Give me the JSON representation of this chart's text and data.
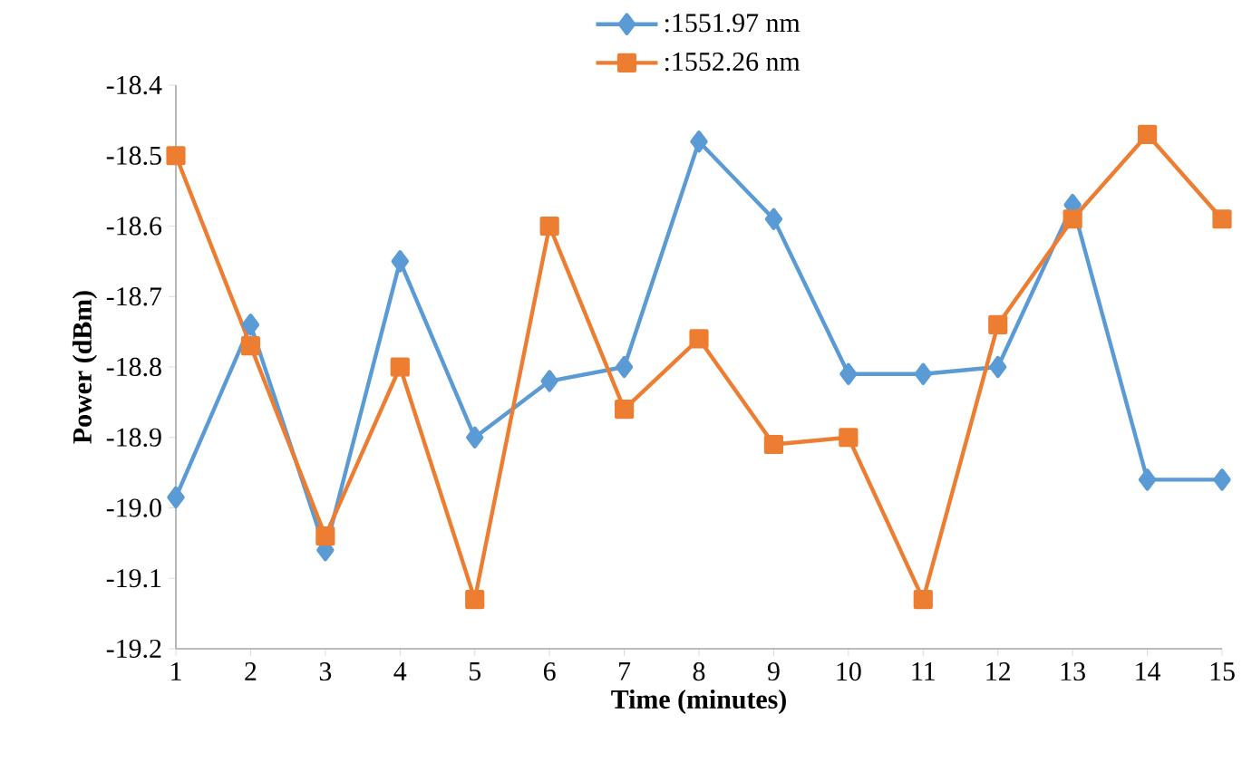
{
  "chart_data": {
    "type": "line",
    "xlabel": "Time (minutes)",
    "ylabel": "Power (dBm)",
    "x": [
      1,
      2,
      3,
      4,
      5,
      6,
      7,
      8,
      9,
      10,
      11,
      12,
      13,
      14,
      15
    ],
    "xlim": [
      1,
      15
    ],
    "xticks": [
      1,
      2,
      3,
      4,
      5,
      6,
      7,
      8,
      9,
      10,
      11,
      12,
      13,
      14,
      15
    ],
    "ylim": [
      -19.2,
      -18.4
    ],
    "yticks": [
      {
        "value": -19.2,
        "label": "-19.2"
      },
      {
        "value": -19.1,
        "label": "-19.1"
      },
      {
        "value": -19.0,
        "label": "-19.0"
      },
      {
        "value": -18.9,
        "label": "-18.9"
      },
      {
        "value": -18.8,
        "label": "-18.8"
      },
      {
        "value": -18.7,
        "label": "-18.7"
      },
      {
        "value": -18.6,
        "label": "-18.6"
      },
      {
        "value": -18.5,
        "label": "-18.5"
      },
      {
        "value": -18.4,
        "label": "-18.4"
      }
    ],
    "grid": false,
    "legend": "top",
    "line_style": "solid",
    "series": [
      {
        "name": ":1551.97 nm",
        "color": "#5b9bd5",
        "marker": "diamond",
        "values": [
          -18.985,
          -18.74,
          -19.06,
          -18.65,
          -18.9,
          -18.82,
          -18.8,
          -18.48,
          -18.59,
          -18.81,
          -18.81,
          -18.8,
          -18.57,
          -18.96,
          -18.96
        ]
      },
      {
        "name": ":1552.26 nm",
        "color": "#ed7d31",
        "marker": "square",
        "values": [
          -18.5,
          -18.77,
          -19.04,
          -18.8,
          -19.13,
          -18.6,
          -18.86,
          -18.76,
          -18.91,
          -18.9,
          -19.13,
          -18.74,
          -18.59,
          -18.47,
          -18.59
        ]
      }
    ]
  }
}
